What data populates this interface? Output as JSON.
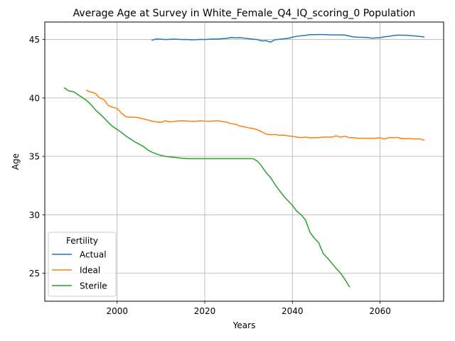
{
  "chart_data": {
    "type": "line",
    "title": "Average Age at Survey in White_Female_Q4_IQ_scoring_0 Population",
    "xlabel": "Years",
    "ylabel": "Age",
    "xlim": [
      1983.5,
      2074.5
    ],
    "ylim": [
      22.6,
      46.5
    ],
    "xticks": [
      2000,
      2020,
      2040,
      2060
    ],
    "yticks": [
      25,
      30,
      35,
      40,
      45
    ],
    "grid": true,
    "legend": {
      "title": "Fertility",
      "placement": "lower-left"
    },
    "series": [
      {
        "name": "Actual",
        "color": "#1f77b4",
        "x": [
          2008,
          2009,
          2010,
          2011,
          2012,
          2013,
          2014,
          2015,
          2016,
          2017,
          2018,
          2019,
          2020,
          2021,
          2022,
          2023,
          2024,
          2025,
          2026,
          2027,
          2028,
          2029,
          2030,
          2031,
          2032,
          2033,
          2034,
          2035,
          2036,
          2037,
          2038,
          2039,
          2040,
          2041,
          2042,
          2043,
          2044,
          2045,
          2046,
          2047,
          2048,
          2049,
          2050,
          2051,
          2052,
          2053,
          2054,
          2055,
          2056,
          2057,
          2058,
          2059,
          2060,
          2061,
          2062,
          2063,
          2064,
          2065,
          2066,
          2067,
          2068,
          2069,
          2070
        ],
        "y": [
          44.95,
          45.05,
          45.03,
          45.0,
          45.02,
          45.04,
          45.02,
          45.0,
          45.0,
          44.98,
          44.99,
          45.02,
          45.0,
          45.03,
          45.05,
          45.04,
          45.08,
          45.1,
          45.18,
          45.15,
          45.16,
          45.12,
          45.08,
          45.03,
          45.0,
          44.88,
          44.9,
          44.78,
          44.98,
          45.02,
          45.06,
          45.1,
          45.2,
          45.28,
          45.32,
          45.36,
          45.42,
          45.42,
          45.43,
          45.43,
          45.42,
          45.4,
          45.4,
          45.4,
          45.38,
          45.3,
          45.22,
          45.2,
          45.19,
          45.18,
          45.12,
          45.14,
          45.16,
          45.24,
          45.27,
          45.34,
          45.38,
          45.37,
          45.37,
          45.33,
          45.31,
          45.27,
          45.22
        ]
      },
      {
        "name": "Ideal",
        "color": "#ff7f0e",
        "x": [
          1993,
          1994,
          1995,
          1996,
          1997,
          1998,
          1999,
          2000,
          2001,
          2002,
          2003,
          2004,
          2005,
          2006,
          2007,
          2008,
          2009,
          2010,
          2011,
          2012,
          2013,
          2014,
          2015,
          2016,
          2017,
          2018,
          2019,
          2020,
          2021,
          2022,
          2023,
          2024,
          2025,
          2026,
          2027,
          2028,
          2029,
          2030,
          2031,
          2032,
          2033,
          2034,
          2035,
          2036,
          2037,
          2038,
          2039,
          2040,
          2041,
          2042,
          2043,
          2044,
          2045,
          2046,
          2047,
          2048,
          2049,
          2050,
          2051,
          2052,
          2053,
          2054,
          2055,
          2056,
          2057,
          2058,
          2059,
          2060,
          2061,
          2062,
          2063,
          2064,
          2065,
          2066,
          2067,
          2068,
          2069,
          2070
        ],
        "y": [
          40.65,
          40.5,
          40.4,
          40.0,
          39.85,
          39.35,
          39.2,
          39.1,
          38.7,
          38.4,
          38.35,
          38.35,
          38.3,
          38.2,
          38.12,
          38.0,
          37.95,
          37.9,
          38.05,
          37.95,
          37.98,
          38.03,
          38.05,
          38.02,
          38.0,
          38.0,
          38.05,
          38.02,
          38.0,
          38.03,
          38.05,
          37.98,
          37.93,
          37.8,
          37.75,
          37.6,
          37.52,
          37.45,
          37.38,
          37.28,
          37.1,
          36.9,
          36.85,
          36.88,
          36.8,
          36.82,
          36.75,
          36.72,
          36.65,
          36.6,
          36.65,
          36.58,
          36.6,
          36.6,
          36.65,
          36.65,
          36.65,
          36.75,
          36.65,
          36.72,
          36.6,
          36.6,
          36.55,
          36.55,
          36.55,
          36.55,
          36.55,
          36.6,
          36.48,
          36.6,
          36.6,
          36.62,
          36.52,
          36.52,
          36.52,
          36.48,
          36.5,
          36.4
        ]
      },
      {
        "name": "Sterile",
        "color": "#2ca02c",
        "x": [
          1988,
          1989,
          1990,
          1991,
          1992,
          1993,
          1994,
          1995,
          1996,
          1997,
          1998,
          1999,
          2000,
          2001,
          2002,
          2003,
          2004,
          2005,
          2006,
          2007,
          2008,
          2009,
          2010,
          2011,
          2012,
          2013,
          2014,
          2015,
          2016,
          2017,
          2018,
          2019,
          2020,
          2021,
          2022,
          2023,
          2024,
          2025,
          2026,
          2027,
          2028,
          2029,
          2030,
          2031,
          2032,
          2033,
          2034,
          2035,
          2036,
          2037,
          2038,
          2039,
          2040,
          2041,
          2042,
          2043,
          2044,
          2045,
          2046,
          2047,
          2048,
          2049,
          2050,
          2051,
          2052,
          2053
        ],
        "y": [
          40.85,
          40.6,
          40.55,
          40.3,
          40.05,
          39.8,
          39.45,
          39.0,
          38.65,
          38.3,
          37.9,
          37.55,
          37.3,
          37.05,
          36.75,
          36.5,
          36.25,
          36.05,
          35.85,
          35.55,
          35.35,
          35.2,
          35.08,
          35.0,
          34.95,
          34.92,
          34.88,
          34.82,
          34.8,
          34.8,
          34.8,
          34.8,
          34.8,
          34.8,
          34.8,
          34.8,
          34.8,
          34.8,
          34.8,
          34.8,
          34.8,
          34.8,
          34.8,
          34.8,
          34.6,
          34.15,
          33.6,
          33.2,
          32.6,
          32.1,
          31.6,
          31.2,
          30.8,
          30.3,
          30.0,
          29.55,
          28.5,
          28.0,
          27.6,
          26.7,
          26.3,
          25.85,
          25.4,
          25.0,
          24.45,
          23.85
        ]
      }
    ]
  }
}
